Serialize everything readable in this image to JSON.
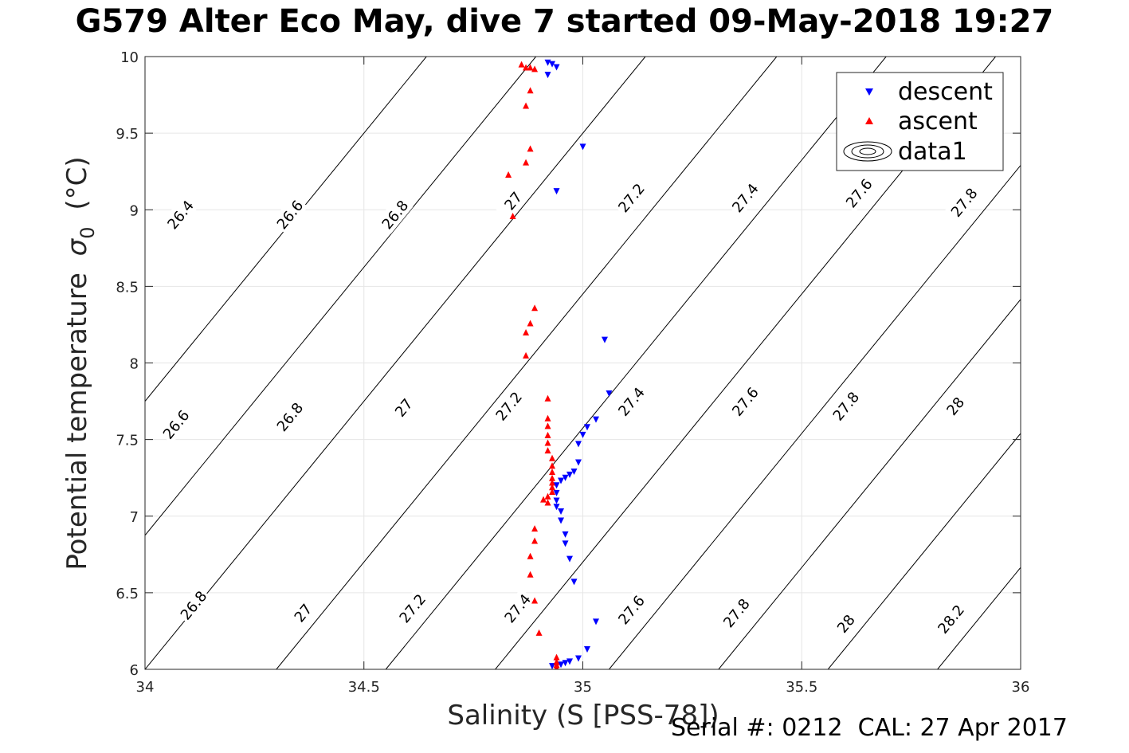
{
  "title": "G579 Alter Eco May, dive 7 started 09-May-2018 19:27",
  "footer": {
    "serial": "Serial #: 0212",
    "cal": "CAL: 27 Apr 2017"
  },
  "chart_data": {
    "type": "scatter",
    "xlabel": "Salinity (S [PSS-78])",
    "ylabel_main": "Potential temperature",
    "ylabel_symbol": "σ",
    "ylabel_sub": "0",
    "ylabel_unit": "(°C)",
    "xlim": [
      34,
      36
    ],
    "ylim": [
      6,
      10
    ],
    "xticks": [
      34,
      34.5,
      35,
      35.5,
      36
    ],
    "xtick_labels": [
      "34",
      "34.5",
      "35",
      "35.5",
      "36"
    ],
    "yticks": [
      6,
      6.5,
      7,
      7.5,
      8,
      8.5,
      9,
      9.5,
      10
    ],
    "ytick_labels": [
      "6",
      "6.5",
      "7",
      "7.5",
      "8",
      "8.5",
      "9",
      "9.5",
      "10"
    ],
    "grid": true,
    "legend_position": "top-right",
    "colors": {
      "descent": "#0000ff",
      "ascent": "#ff0000",
      "contour": "#000000",
      "grid": "#e6e6e6"
    },
    "series": [
      {
        "name": "descent",
        "marker": "triangle-down",
        "color": "#0000ff",
        "points": [
          [
            34.92,
            9.96
          ],
          [
            34.93,
            9.95
          ],
          [
            34.94,
            9.93
          ],
          [
            34.92,
            9.88
          ],
          [
            35.0,
            9.41
          ],
          [
            34.94,
            9.12
          ],
          [
            35.05,
            8.15
          ],
          [
            35.06,
            7.8
          ],
          [
            35.03,
            7.63
          ],
          [
            35.01,
            7.58
          ],
          [
            35.0,
            7.53
          ],
          [
            34.99,
            7.47
          ],
          [
            34.99,
            7.35
          ],
          [
            34.98,
            7.29
          ],
          [
            34.97,
            7.27
          ],
          [
            34.96,
            7.25
          ],
          [
            34.95,
            7.23
          ],
          [
            34.94,
            7.2
          ],
          [
            34.94,
            7.15
          ],
          [
            34.94,
            7.1
          ],
          [
            34.94,
            7.06
          ],
          [
            34.95,
            7.03
          ],
          [
            34.95,
            6.97
          ],
          [
            34.96,
            6.88
          ],
          [
            34.96,
            6.82
          ],
          [
            34.97,
            6.72
          ],
          [
            34.98,
            6.57
          ],
          [
            35.03,
            6.31
          ],
          [
            35.01,
            6.13
          ],
          [
            34.99,
            6.07
          ],
          [
            34.97,
            6.05
          ],
          [
            34.96,
            6.04
          ],
          [
            34.95,
            6.03
          ],
          [
            34.94,
            6.02
          ],
          [
            34.93,
            6.02
          ]
        ]
      },
      {
        "name": "ascent",
        "marker": "triangle-up",
        "color": "#ff0000",
        "points": [
          [
            34.86,
            9.95
          ],
          [
            34.87,
            9.93
          ],
          [
            34.88,
            9.93
          ],
          [
            34.89,
            9.92
          ],
          [
            34.88,
            9.78
          ],
          [
            34.87,
            9.68
          ],
          [
            34.88,
            9.4
          ],
          [
            34.87,
            9.31
          ],
          [
            34.83,
            9.23
          ],
          [
            34.84,
            8.96
          ],
          [
            34.89,
            8.36
          ],
          [
            34.88,
            8.26
          ],
          [
            34.87,
            8.2
          ],
          [
            34.87,
            8.05
          ],
          [
            34.92,
            7.77
          ],
          [
            34.92,
            7.64
          ],
          [
            34.92,
            7.59
          ],
          [
            34.92,
            7.53
          ],
          [
            34.92,
            7.48
          ],
          [
            34.92,
            7.43
          ],
          [
            34.93,
            7.38
          ],
          [
            34.93,
            7.33
          ],
          [
            34.93,
            7.29
          ],
          [
            34.93,
            7.25
          ],
          [
            34.93,
            7.22
          ],
          [
            34.93,
            7.19
          ],
          [
            34.93,
            7.16
          ],
          [
            34.92,
            7.13
          ],
          [
            34.91,
            7.11
          ],
          [
            34.92,
            7.09
          ],
          [
            34.89,
            6.92
          ],
          [
            34.89,
            6.84
          ],
          [
            34.88,
            6.74
          ],
          [
            34.88,
            6.62
          ],
          [
            34.89,
            6.45
          ],
          [
            34.9,
            6.24
          ],
          [
            34.94,
            6.08
          ],
          [
            34.94,
            6.05
          ],
          [
            34.94,
            6.03
          ],
          [
            34.94,
            6.01
          ]
        ]
      }
    ],
    "contour_legend_label": "data1",
    "contour_slope_dT_dS": 3.5,
    "contours": [
      {
        "level": "26.4",
        "s_at_6C": 33.5,
        "labels": [
          [
            34.08,
            8.97
          ]
        ]
      },
      {
        "level": "26.6",
        "s_at_6C": 33.75,
        "labels": [
          [
            34.33,
            8.97
          ],
          [
            34.07,
            7.6
          ]
        ]
      },
      {
        "level": "26.8",
        "s_at_6C": 34.0,
        "labels": [
          [
            34.57,
            8.97
          ],
          [
            34.33,
            7.65
          ],
          [
            34.11,
            6.42
          ]
        ]
      },
      {
        "level": "27",
        "s_at_6C": 34.3,
        "labels": [
          [
            34.84,
            9.06
          ],
          [
            34.59,
            7.71
          ],
          [
            34.36,
            6.37
          ]
        ]
      },
      {
        "level": "27.2",
        "s_at_6C": 34.55,
        "labels": [
          [
            35.11,
            9.08
          ],
          [
            34.83,
            7.72
          ],
          [
            34.61,
            6.4
          ]
        ]
      },
      {
        "level": "27.4",
        "s_at_6C": 34.8,
        "labels": [
          [
            35.37,
            9.08
          ],
          [
            35.11,
            7.75
          ],
          [
            34.85,
            6.4
          ]
        ]
      },
      {
        "level": "27.6",
        "s_at_6C": 35.06,
        "labels": [
          [
            35.63,
            9.11
          ],
          [
            35.37,
            7.75
          ],
          [
            35.11,
            6.39
          ]
        ]
      },
      {
        "level": "27.8",
        "s_at_6C": 35.31,
        "labels": [
          [
            35.87,
            9.05
          ],
          [
            35.6,
            7.72
          ],
          [
            35.35,
            6.37
          ]
        ]
      },
      {
        "level": "28",
        "s_at_6C": 35.56,
        "labels": [
          [
            35.85,
            7.72
          ],
          [
            35.6,
            6.3
          ]
        ]
      },
      {
        "level": "28.2",
        "s_at_6C": 35.81,
        "labels": [
          [
            35.84,
            6.33
          ]
        ]
      }
    ]
  }
}
